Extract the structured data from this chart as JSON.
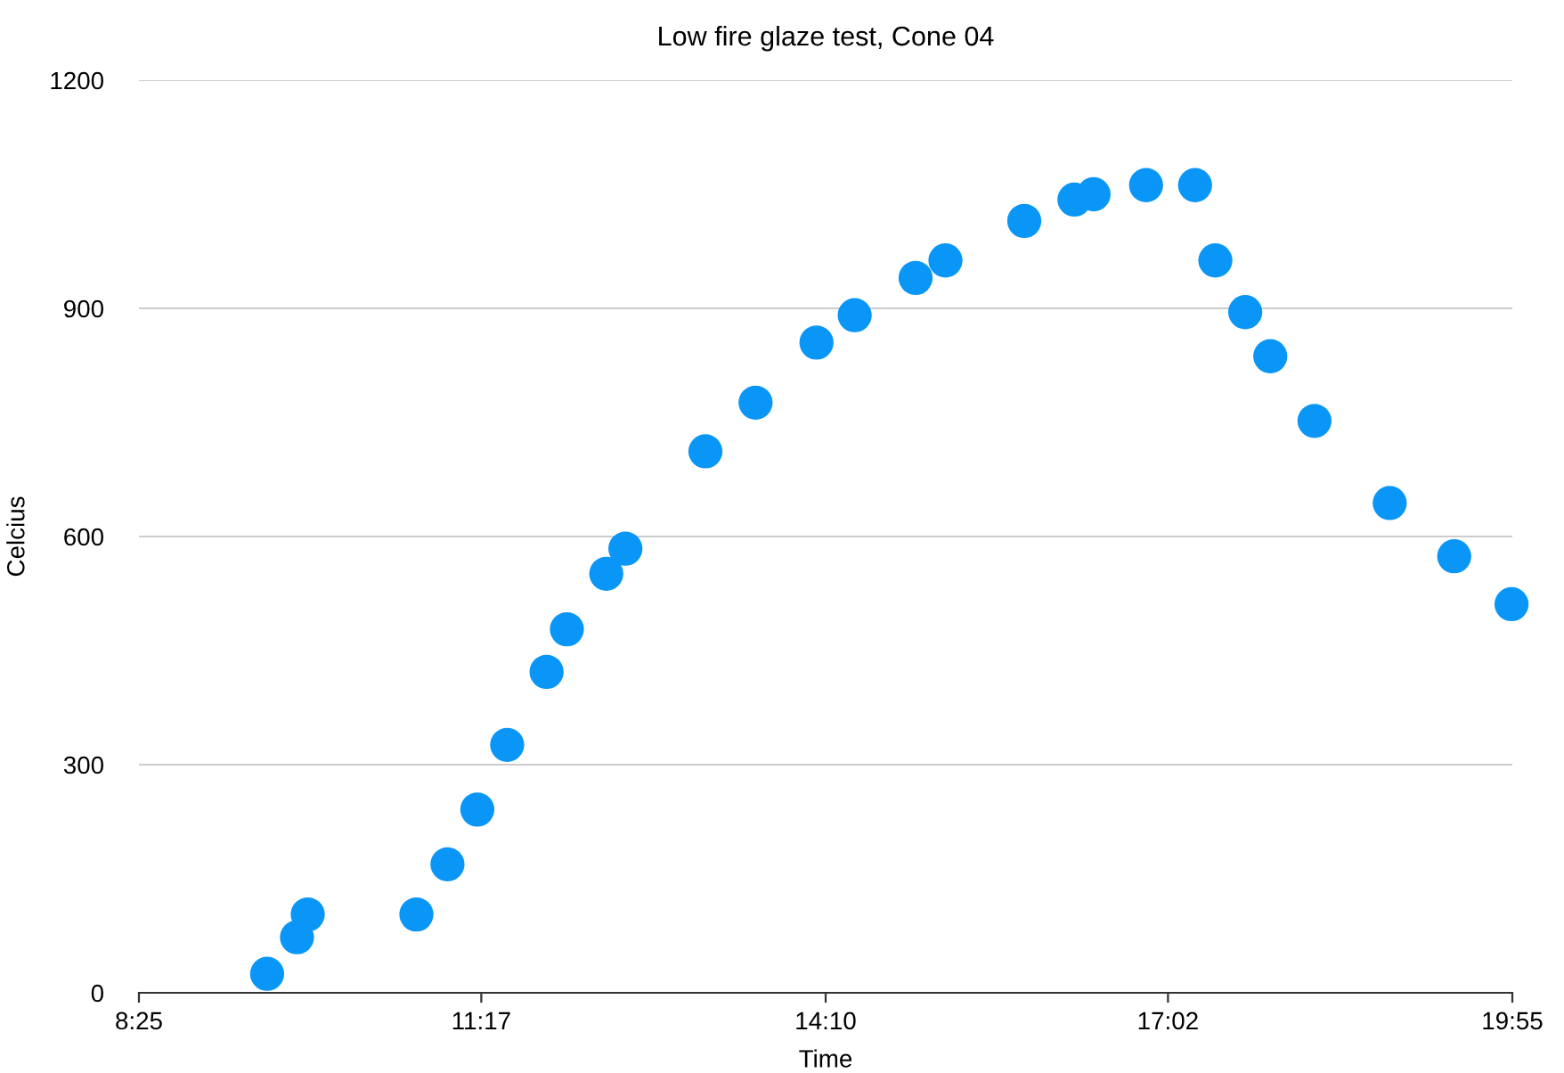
{
  "chart_data": {
    "type": "scatter",
    "title": "Low fire glaze test, Cone 04",
    "xlabel": "Time",
    "ylabel": "Celcius",
    "x": [
      9.49,
      9.74,
      9.83,
      10.74,
      11.0,
      11.25,
      11.5,
      11.83,
      12.0,
      12.33,
      12.49,
      13.16,
      13.58,
      14.09,
      14.41,
      14.92,
      15.17,
      15.83,
      16.25,
      16.41,
      16.85,
      17.26,
      17.43,
      17.68,
      17.89,
      18.26,
      18.89,
      19.43,
      19.91
    ],
    "series": [
      {
        "color": "#0a96f7",
        "values": [
          25,
          73,
          103,
          103,
          169,
          241,
          326,
          422,
          478,
          551,
          584,
          712,
          776,
          855,
          891,
          940,
          963,
          1015,
          1043,
          1050,
          1062,
          1062,
          963,
          895,
          837,
          752,
          644,
          574,
          511
        ]
      }
    ],
    "xlim": [
      8.4167,
      19.9167
    ],
    "xticks": [
      {
        "value": 8.4167,
        "label": "8:25"
      },
      {
        "value": 11.2833,
        "label": "11:17"
      },
      {
        "value": 14.1667,
        "label": "14:10"
      },
      {
        "value": 17.0333,
        "label": "17:02"
      },
      {
        "value": 19.9167,
        "label": "19:55"
      }
    ],
    "ylim": [
      0,
      1200
    ],
    "yticks": [
      0,
      300,
      600,
      900,
      1200
    ],
    "grid": "y",
    "marker": "circle",
    "legend": false
  }
}
